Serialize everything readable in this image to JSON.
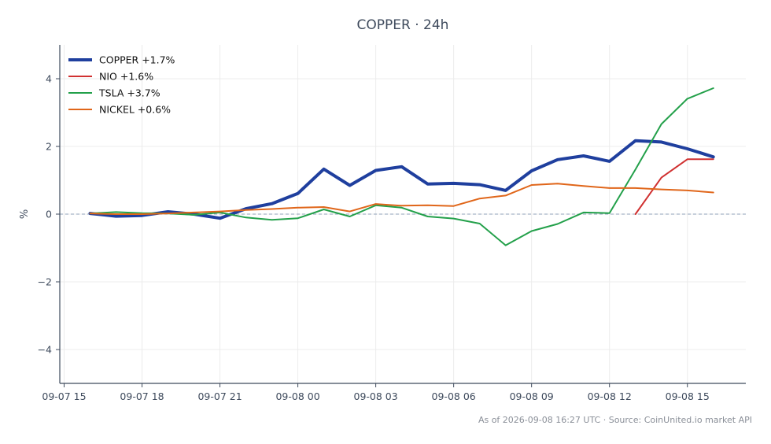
{
  "chart_data": {
    "type": "line",
    "title": "COPPER · 24h",
    "xlabel": "",
    "ylabel": "%",
    "x_ticks": [
      "09-07 15",
      "09-07 18",
      "09-07 21",
      "09-08 00",
      "09-08 03",
      "09-08 06",
      "09-08 09",
      "09-08 12",
      "09-08 15"
    ],
    "y_ticks": [
      -4,
      -2,
      0,
      2,
      4
    ],
    "y_tick_labels": [
      "−4",
      "−2",
      "0",
      "2",
      "4"
    ],
    "xlim": [
      "09-07 14:50",
      "09-08 17:15"
    ],
    "ylim": [
      -5,
      5
    ],
    "grid": true,
    "legend_position": "top-left",
    "reference_line": {
      "y": 0,
      "color": "#8fa0b8",
      "style": "dashed"
    },
    "x": [
      "09-07 16:00",
      "09-07 17:00",
      "09-07 18:00",
      "09-07 19:00",
      "09-07 20:00",
      "09-07 21:00",
      "09-07 22:00",
      "09-07 23:00",
      "09-08 00:00",
      "09-08 01:00",
      "09-08 02:00",
      "09-08 03:00",
      "09-08 04:00",
      "09-08 05:00",
      "09-08 06:00",
      "09-08 07:00",
      "09-08 08:00",
      "09-08 09:00",
      "09-08 10:00",
      "09-08 11:00",
      "09-08 12:00",
      "09-08 13:00",
      "09-08 14:00",
      "09-08 15:00",
      "09-08 16:00"
    ],
    "series": [
      {
        "name": "COPPER +1.7%",
        "color": "#1f3f9e",
        "width": 4,
        "values": [
          0.02,
          -0.06,
          -0.04,
          0.07,
          0.0,
          -0.12,
          0.16,
          0.31,
          0.61,
          1.33,
          0.85,
          1.29,
          1.4,
          0.89,
          0.91,
          0.87,
          0.7,
          1.28,
          1.61,
          1.72,
          1.56,
          2.17,
          2.13,
          1.93,
          1.69
        ]
      },
      {
        "name": "NIO +1.6%",
        "color": "#d03030",
        "width": 2,
        "values": [
          null,
          null,
          null,
          null,
          null,
          null,
          null,
          null,
          null,
          null,
          null,
          null,
          null,
          null,
          null,
          null,
          null,
          null,
          null,
          null,
          null,
          0.0,
          1.08,
          1.62,
          1.62
        ]
      },
      {
        "name": "TSLA +3.7%",
        "color": "#23a04a",
        "width": 2,
        "values": [
          0.02,
          0.06,
          0.03,
          0.02,
          -0.02,
          0.05,
          -0.1,
          -0.17,
          -0.12,
          0.14,
          -0.07,
          0.26,
          0.19,
          -0.07,
          -0.13,
          -0.28,
          -0.92,
          -0.5,
          -0.29,
          0.05,
          0.03,
          1.32,
          2.66,
          3.41,
          3.72
        ]
      },
      {
        "name": "NICKEL +0.6%",
        "color": "#e0661a",
        "width": 2,
        "values": [
          0.02,
          0.0,
          0.0,
          0.02,
          0.05,
          0.08,
          0.12,
          0.15,
          0.19,
          0.21,
          0.08,
          0.3,
          0.25,
          0.26,
          0.24,
          0.46,
          0.55,
          0.86,
          0.9,
          0.83,
          0.77,
          0.77,
          0.73,
          0.7,
          0.64
        ]
      }
    ]
  },
  "footer": "As of 2026-09-08 16:27 UTC · Source: CoinUnited.io market API"
}
